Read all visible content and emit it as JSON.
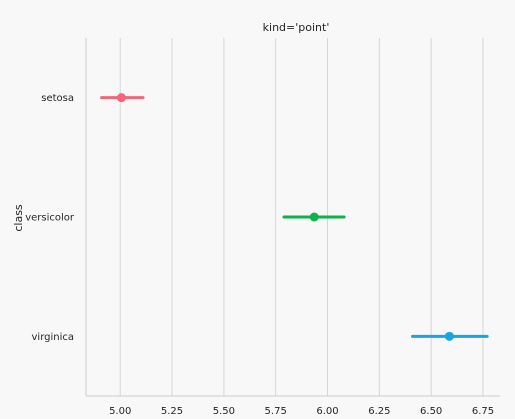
{
  "chart_data": {
    "type": "point",
    "title": "kind='point'",
    "ylabel": "class",
    "xlabel": "",
    "xlim": [
      4.835,
      6.832
    ],
    "xticks": [
      "5.00",
      "5.25",
      "5.50",
      "5.75",
      "6.00",
      "6.25",
      "6.50",
      "6.75"
    ],
    "grid": "vertical",
    "categories": [
      "setosa",
      "versicolor",
      "virginica"
    ],
    "points": [
      {
        "category": "setosa",
        "estimate": 5.006,
        "ci": [
          4.91,
          5.11
        ],
        "color": "#f2667a"
      },
      {
        "category": "versicolor",
        "estimate": 5.936,
        "ci": [
          5.79,
          6.08
        ],
        "color": "#0fb14a"
      },
      {
        "category": "virginica",
        "estimate": 6.588,
        "ci": [
          6.41,
          6.77
        ],
        "color": "#15a5e0"
      }
    ]
  }
}
